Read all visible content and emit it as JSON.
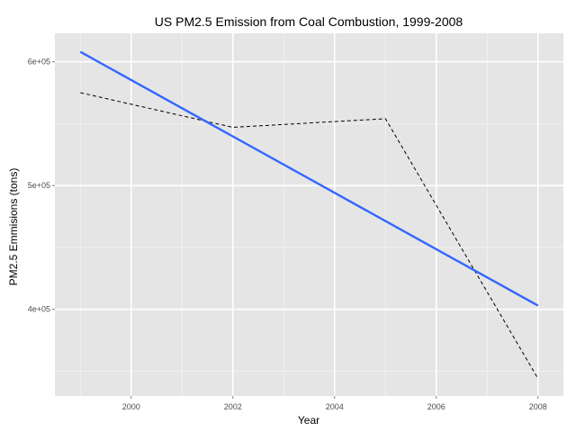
{
  "chart_data": {
    "type": "line",
    "title": "US PM2.5 Emission from Coal Combustion, 1999-2008",
    "xlabel": "Year",
    "ylabel": "PM2.5 Emmisions (tons)",
    "xlim": [
      1998.5,
      2008.5
    ],
    "ylim": [
      330000,
      623000
    ],
    "x_ticks": [
      2000,
      2002,
      2004,
      2006,
      2008
    ],
    "y_ticks": [
      400000,
      500000,
      600000
    ],
    "x_tick_labels": [
      "2000",
      "2002",
      "2004",
      "2006",
      "2008"
    ],
    "y_tick_labels": [
      "4e+05",
      "5e+05",
      "6e+05"
    ],
    "grid": true,
    "series": [
      {
        "style": "dashed",
        "color": "#000000",
        "x": [
          1999,
          2002,
          2005,
          2008
        ],
        "y": [
          575000,
          547000,
          554000,
          344000
        ]
      },
      {
        "style": "solid",
        "color": "#3366ff",
        "x": [
          1999,
          2008
        ],
        "y": [
          608000,
          403000
        ]
      }
    ],
    "colors": {
      "panel_background": "#e5e5e5",
      "grid_major": "#ffffff",
      "grid_minor": "#f2f2f2"
    }
  }
}
